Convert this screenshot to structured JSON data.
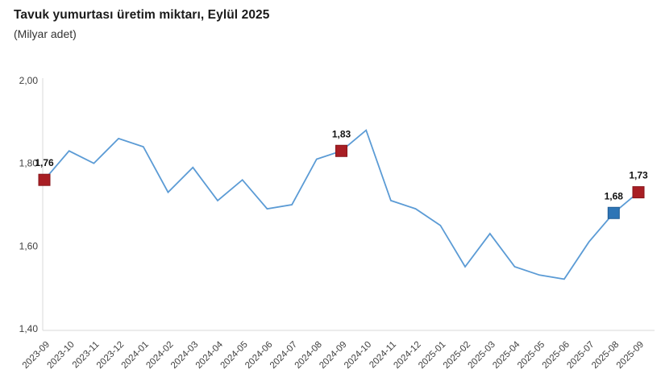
{
  "header": {
    "title": "Tavuk yumurtası üretim miktarı, Eylül 2025",
    "subtitle": "(Milyar adet)"
  },
  "chart_data": {
    "type": "line",
    "title": "Tavuk yumurtası üretim miktarı, Eylül 2025",
    "subtitle": "(Milyar adet)",
    "ylabel": "Milyar adet",
    "xlabel": "",
    "categories": [
      "2023-09",
      "2023-10",
      "2023-11",
      "2023-12",
      "2024-01",
      "2024-02",
      "2024-03",
      "2024-04",
      "2024-05",
      "2024-06",
      "2024-07",
      "2024-08",
      "2024-09",
      "2024-10",
      "2024-11",
      "2024-12",
      "2025-01",
      "2025-02",
      "2025-03",
      "2025-04",
      "2025-05",
      "2025-06",
      "2025-07",
      "2025-08",
      "2025-09"
    ],
    "values": [
      1.76,
      1.83,
      1.8,
      1.86,
      1.84,
      1.73,
      1.79,
      1.71,
      1.76,
      1.69,
      1.7,
      1.81,
      1.83,
      1.88,
      1.71,
      1.69,
      1.65,
      1.55,
      1.63,
      1.55,
      1.53,
      1.52,
      1.61,
      1.68,
      1.73
    ],
    "ylim": [
      1.4,
      2.0
    ],
    "yticks": [
      {
        "value": 2.0,
        "label": "2,00"
      },
      {
        "value": 1.8,
        "label": "1,80"
      },
      {
        "value": 1.6,
        "label": "1,60"
      },
      {
        "value": 1.4,
        "label": "1,40"
      }
    ],
    "highlights": [
      {
        "index": 0,
        "label": "1,76",
        "color": "#a81e24",
        "border": "#87161b"
      },
      {
        "index": 12,
        "label": "1,83",
        "color": "#a81e24",
        "border": "#87161b"
      },
      {
        "index": 23,
        "label": "1,68",
        "color": "#2e75b6",
        "border": "#1f5c94"
      },
      {
        "index": 24,
        "label": "1,73",
        "color": "#a81e24",
        "border": "#87161b"
      }
    ],
    "colors": {
      "line": "#5b9bd5",
      "axis": "#d9d9d9",
      "tick_text": "#3f3f3f",
      "point_label_text": "#111111"
    },
    "grid": false,
    "legend": false
  }
}
